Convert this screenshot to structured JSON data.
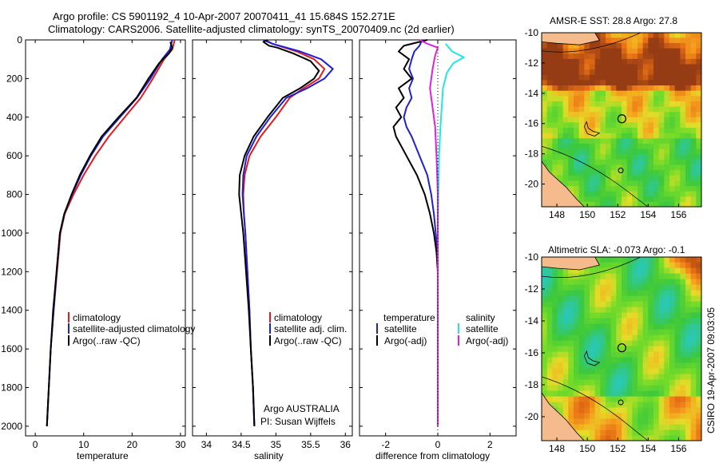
{
  "header": {
    "line1": "Argo profile: CS 5901192_4 10-Apr-2007 20070411_41 15.684S 152.271E",
    "line2": "Climatology: CARS2006. Satellite-adjusted climatology: synTS_20070409.nc (2d earlier)"
  },
  "credits": {
    "program": "Argo AUSTRALIA",
    "pi": "PI: Susan Wijffels",
    "stamp": "CSIRO 19-Apr-2007 09:03:05"
  },
  "colors": {
    "climatology": "#e41a1c",
    "satellite": "#1f1fd6",
    "argo": "#000000",
    "salinity_satellite": "#22e6e6",
    "salinity_argo": "#e020e0",
    "land": "#f5bb8c"
  },
  "chart_data": [
    {
      "type": "line",
      "id": "temperature-profile",
      "xlabel": "temperature",
      "xlim": [
        -2,
        31
      ],
      "xticks": [
        0,
        10,
        20,
        30
      ],
      "ylim": [
        2050,
        0
      ],
      "yticks": [
        0,
        200,
        400,
        600,
        800,
        1000,
        1200,
        1400,
        1600,
        1800,
        2000
      ],
      "legend": [
        "climatology",
        "satellite-adjusted climatology",
        "Argo(..raw -QC)"
      ],
      "series": [
        {
          "name": "climatology",
          "color": "#e41a1c",
          "points": [
            [
              28.8,
              0
            ],
            [
              28.3,
              50
            ],
            [
              26.6,
              100
            ],
            [
              24.3,
              200
            ],
            [
              21.8,
              300
            ],
            [
              18.5,
              400
            ],
            [
              15.2,
              500
            ],
            [
              12.4,
              600
            ],
            [
              10.0,
              700
            ],
            [
              7.9,
              800
            ],
            [
              6.1,
              900
            ],
            [
              5.2,
              1000
            ],
            [
              4.5,
              1200
            ],
            [
              3.8,
              1400
            ],
            [
              3.2,
              1600
            ],
            [
              2.8,
              1800
            ],
            [
              2.4,
              2000
            ]
          ]
        },
        {
          "name": "satellite-adjusted climatology",
          "color": "#1f1fd6",
          "points": [
            [
              28.3,
              0
            ],
            [
              27.8,
              50
            ],
            [
              26.2,
              100
            ],
            [
              23.8,
              200
            ],
            [
              21.0,
              300
            ],
            [
              17.5,
              400
            ],
            [
              14.0,
              500
            ],
            [
              11.5,
              600
            ],
            [
              9.4,
              700
            ],
            [
              7.6,
              800
            ],
            [
              6.0,
              900
            ],
            [
              5.1,
              1000
            ],
            [
              4.4,
              1200
            ],
            [
              3.8,
              1400
            ],
            [
              3.2,
              1600
            ],
            [
              2.8,
              1800
            ],
            [
              2.4,
              2000
            ]
          ]
        },
        {
          "name": "Argo(..raw -QC)",
          "color": "#000000",
          "points": [
            [
              27.9,
              10
            ],
            [
              28.3,
              40
            ],
            [
              27.6,
              70
            ],
            [
              25.6,
              120
            ],
            [
              23.4,
              200
            ],
            [
              20.9,
              300
            ],
            [
              17.2,
              400
            ],
            [
              13.7,
              500
            ],
            [
              11.3,
              600
            ],
            [
              9.2,
              700
            ],
            [
              7.5,
              800
            ],
            [
              6.0,
              900
            ],
            [
              5.1,
              1000
            ],
            [
              4.4,
              1200
            ],
            [
              3.7,
              1400
            ],
            [
              3.2,
              1600
            ],
            [
              2.8,
              1800
            ],
            [
              2.4,
              2000
            ]
          ]
        }
      ]
    },
    {
      "type": "line",
      "id": "salinity-profile",
      "xlabel": "salinity",
      "xlim": [
        33.8,
        36.1
      ],
      "xticks": [
        34,
        34.5,
        35,
        35.5,
        36
      ],
      "ylim": [
        2050,
        0
      ],
      "legend": [
        "climatology",
        "satellite adj. clim.",
        "Argo(..raw -QC)"
      ],
      "series": [
        {
          "name": "climatology",
          "color": "#e41a1c",
          "points": [
            [
              34.85,
              0
            ],
            [
              34.95,
              20
            ],
            [
              35.3,
              60
            ],
            [
              35.55,
              100
            ],
            [
              35.7,
              150
            ],
            [
              35.62,
              200
            ],
            [
              35.4,
              250
            ],
            [
              35.2,
              300
            ],
            [
              35.0,
              400
            ],
            [
              34.78,
              500
            ],
            [
              34.62,
              600
            ],
            [
              34.55,
              700
            ],
            [
              34.53,
              800
            ],
            [
              34.54,
              900
            ],
            [
              34.56,
              1000
            ],
            [
              34.59,
              1200
            ],
            [
              34.62,
              1400
            ],
            [
              34.64,
              1600
            ],
            [
              34.67,
              1800
            ],
            [
              34.69,
              2000
            ]
          ]
        },
        {
          "name": "satellite adj. clim.",
          "color": "#1f1fd6",
          "points": [
            [
              34.82,
              0
            ],
            [
              34.95,
              20
            ],
            [
              35.35,
              60
            ],
            [
              35.65,
              100
            ],
            [
              35.82,
              150
            ],
            [
              35.7,
              200
            ],
            [
              35.45,
              250
            ],
            [
              35.15,
              300
            ],
            [
              34.92,
              400
            ],
            [
              34.72,
              500
            ],
            [
              34.58,
              600
            ],
            [
              34.53,
              700
            ],
            [
              34.52,
              800
            ],
            [
              34.54,
              900
            ],
            [
              34.56,
              1000
            ],
            [
              34.59,
              1200
            ],
            [
              34.62,
              1400
            ],
            [
              34.64,
              1600
            ],
            [
              34.67,
              1800
            ],
            [
              34.69,
              2000
            ]
          ]
        },
        {
          "name": "Argo(..raw -QC)",
          "color": "#000000",
          "points": [
            [
              34.88,
              0
            ],
            [
              34.82,
              10
            ],
            [
              34.9,
              30
            ],
            [
              35.02,
              40
            ],
            [
              35.25,
              70
            ],
            [
              35.5,
              110
            ],
            [
              35.62,
              160
            ],
            [
              35.55,
              200
            ],
            [
              35.35,
              250
            ],
            [
              35.1,
              300
            ],
            [
              34.88,
              400
            ],
            [
              34.68,
              500
            ],
            [
              34.55,
              600
            ],
            [
              34.48,
              700
            ],
            [
              34.47,
              800
            ],
            [
              34.5,
              900
            ],
            [
              34.53,
              1000
            ],
            [
              34.57,
              1200
            ],
            [
              34.61,
              1400
            ],
            [
              34.64,
              1600
            ],
            [
              34.67,
              1800
            ],
            [
              34.69,
              2000
            ]
          ]
        }
      ]
    },
    {
      "type": "line",
      "id": "difference-profile",
      "xlabel": "difference from climatology",
      "xlim": [
        -3.0,
        3.0
      ],
      "xticks": [
        -2,
        0,
        2
      ],
      "ylim": [
        2050,
        0
      ],
      "legend_groups": [
        {
          "title": "temperature",
          "items": [
            "satellite",
            "Argo(-adj)"
          ]
        },
        {
          "title": "salinity",
          "items": [
            "satellite",
            "Argo(-adj)"
          ]
        }
      ],
      "series": [
        {
          "name": "temperature satellite",
          "color": "#1f1fd6",
          "points": [
            [
              -0.6,
              0
            ],
            [
              -0.7,
              30
            ],
            [
              -0.9,
              60
            ],
            [
              -1.0,
              100
            ],
            [
              -1.1,
              150
            ],
            [
              -0.95,
              200
            ],
            [
              -1.1,
              250
            ],
            [
              -1.0,
              300
            ],
            [
              -1.2,
              350
            ],
            [
              -1.3,
              400
            ],
            [
              -1.2,
              450
            ],
            [
              -1.0,
              500
            ],
            [
              -0.7,
              600
            ],
            [
              -0.4,
              700
            ],
            [
              -0.25,
              800
            ],
            [
              -0.15,
              900
            ],
            [
              -0.08,
              1000
            ],
            [
              0,
              1100
            ],
            [
              0,
              2000
            ]
          ]
        },
        {
          "name": "temperature Argo(-adj)",
          "color": "#000000",
          "points": [
            [
              -0.4,
              0
            ],
            [
              -1.3,
              30
            ],
            [
              -1.5,
              60
            ],
            [
              -1.1,
              100
            ],
            [
              -1.3,
              150
            ],
            [
              -1.0,
              200
            ],
            [
              -1.5,
              250
            ],
            [
              -1.3,
              300
            ],
            [
              -1.6,
              350
            ],
            [
              -1.4,
              400
            ],
            [
              -1.7,
              450
            ],
            [
              -1.6,
              500
            ],
            [
              -1.2,
              600
            ],
            [
              -0.8,
              700
            ],
            [
              -0.5,
              800
            ],
            [
              -0.3,
              900
            ],
            [
              -0.15,
              1000
            ],
            [
              -0.05,
              1100
            ],
            [
              0,
              1200
            ],
            [
              0,
              2000
            ]
          ]
        },
        {
          "name": "salinity satellite",
          "color": "#22e6e6",
          "points": [
            [
              0.3,
              20
            ],
            [
              0.55,
              60
            ],
            [
              1.0,
              90
            ],
            [
              0.6,
              120
            ],
            [
              0.35,
              170
            ],
            [
              0.2,
              250
            ],
            [
              0.15,
              350
            ],
            [
              0.1,
              450
            ],
            [
              0.05,
              600
            ],
            [
              0.02,
              800
            ],
            [
              0.0,
              1000
            ],
            [
              0,
              2000
            ]
          ]
        },
        {
          "name": "salinity Argo(-adj)",
          "color": "#e020e0",
          "points": [
            [
              -0.7,
              0
            ],
            [
              -0.4,
              20
            ],
            [
              0.0,
              40
            ],
            [
              -0.1,
              80
            ],
            [
              -0.2,
              150
            ],
            [
              -0.3,
              250
            ],
            [
              -0.2,
              350
            ],
            [
              -0.1,
              450
            ],
            [
              -0.05,
              600
            ],
            [
              0.0,
              800
            ],
            [
              0,
              2000
            ]
          ]
        }
      ]
    },
    {
      "type": "heatmap",
      "id": "sst-map",
      "title": "AMSR-E SST: 28.8 Argo: 27.8",
      "xlim": [
        147,
        157.5
      ],
      "ylim": [
        -21.5,
        -10
      ],
      "xticks": [
        148,
        150,
        152,
        154,
        156
      ],
      "yticks": [
        -10,
        -12,
        -14,
        -16,
        -18,
        -20
      ],
      "argo_position": [
        152.271,
        -15.684
      ]
    },
    {
      "type": "heatmap",
      "id": "sla-map",
      "title": "Altimetric SLA: -0.073 Argo: -0.1",
      "xlim": [
        147,
        157.5
      ],
      "ylim": [
        -21.5,
        -10
      ],
      "xticks": [
        148,
        150,
        152,
        154,
        156
      ],
      "yticks": [
        -10,
        -12,
        -14,
        -16,
        -18,
        -20
      ],
      "argo_position": [
        152.271,
        -15.684
      ]
    }
  ]
}
